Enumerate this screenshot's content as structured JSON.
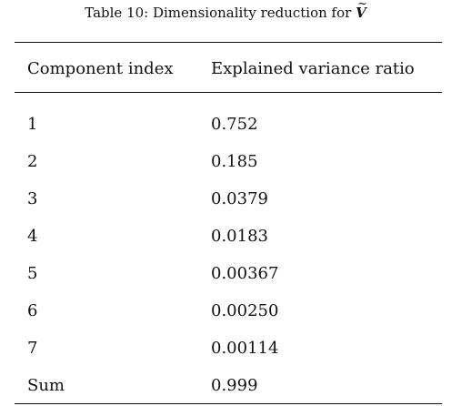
{
  "caption": {
    "prefix": "Table 10: Dimensionality reduction for ",
    "symbol": "V",
    "symbol_accent": "~"
  },
  "table": {
    "headers": [
      "Component index",
      "Explained variance ratio"
    ],
    "rows": [
      [
        "1",
        "0.752"
      ],
      [
        "2",
        "0.185"
      ],
      [
        "3",
        "0.0379"
      ],
      [
        "4",
        "0.0183"
      ],
      [
        "5",
        "0.00367"
      ],
      [
        "6",
        "0.00250"
      ],
      [
        "7",
        "0.00114"
      ],
      [
        "Sum",
        "0.999"
      ]
    ]
  }
}
